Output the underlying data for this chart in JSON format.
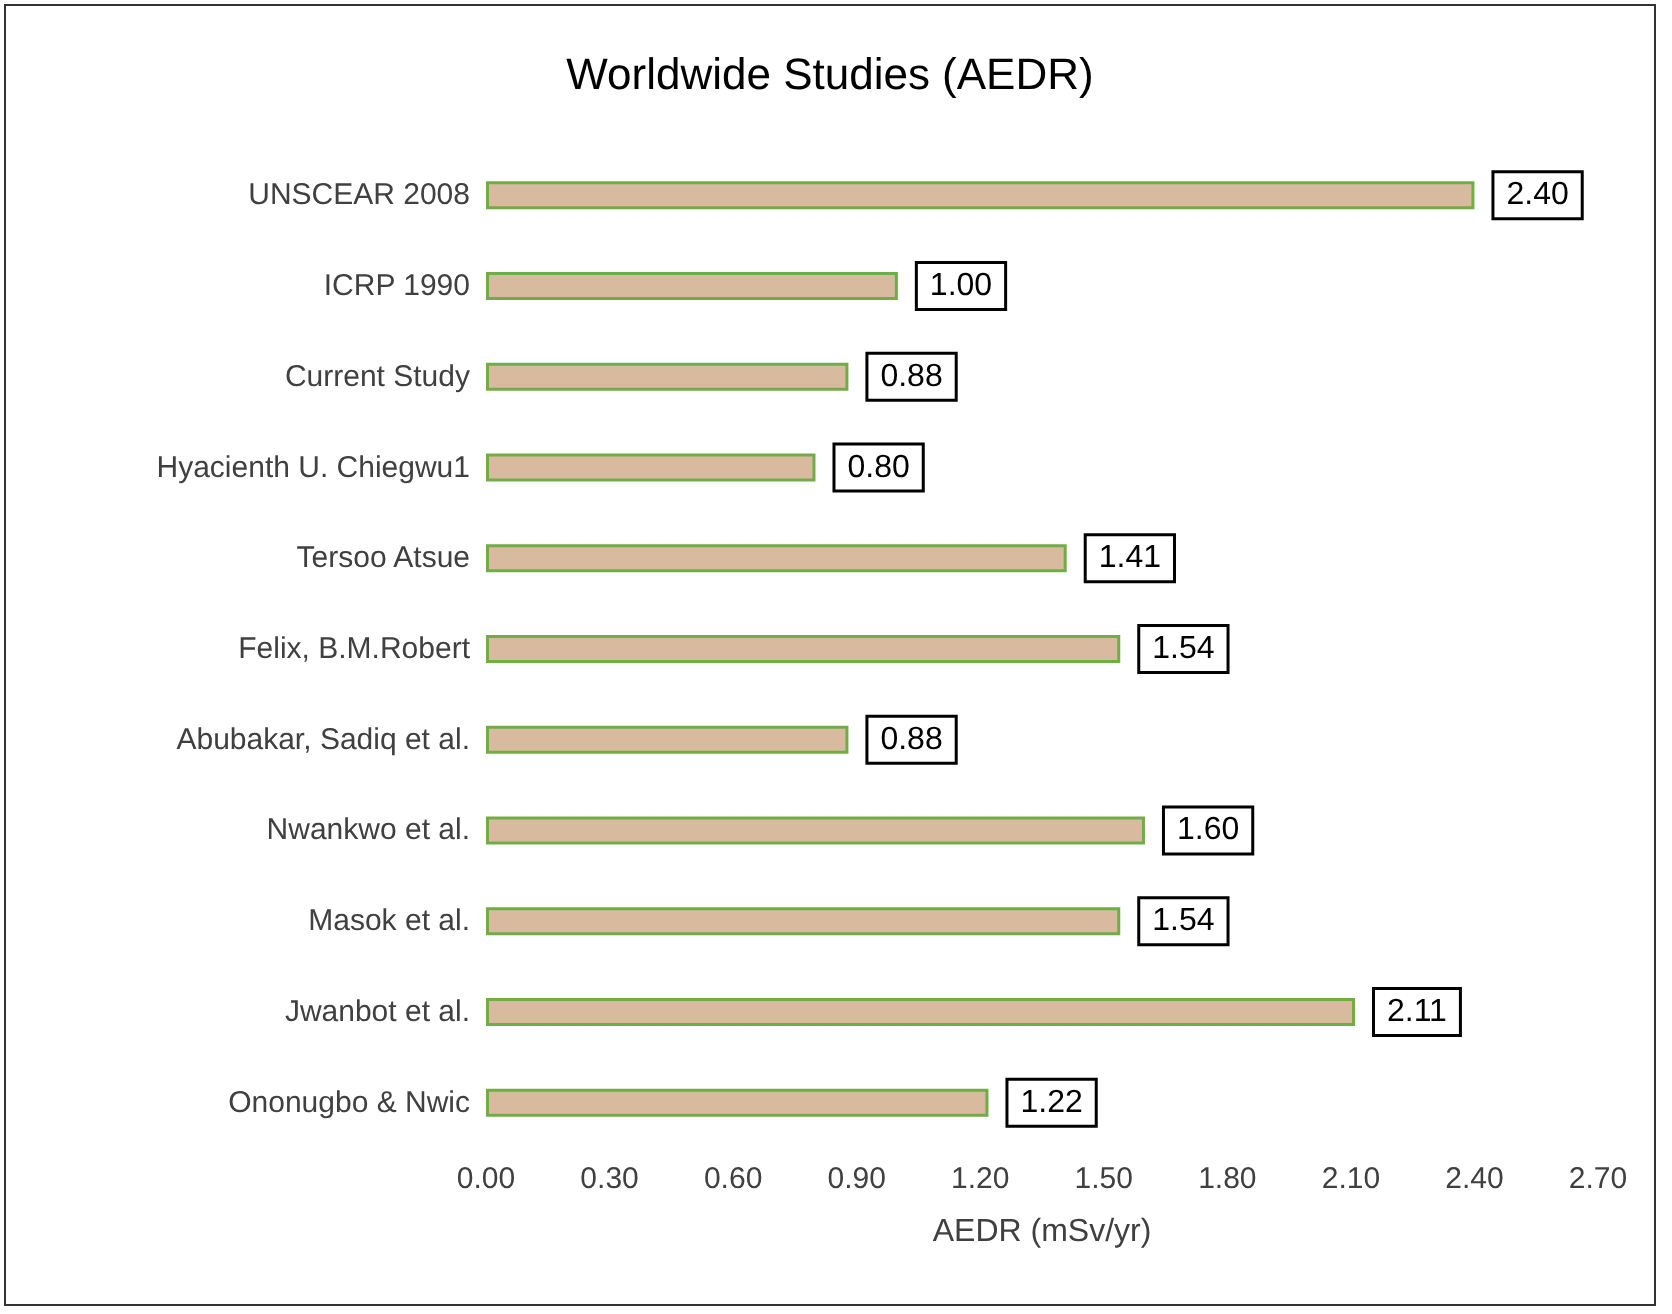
{
  "chart_data": {
    "type": "bar",
    "orientation": "horizontal",
    "title": "Worldwide Studies (AEDR)",
    "xlabel": "AEDR (mSv/yr)",
    "categories": [
      "UNSCEAR 2008",
      "ICRP 1990",
      "Current Study",
      "Hyacienth U. Chiegwu1",
      "Tersoo Atsue",
      "Felix, B.M.Robert",
      "Abubakar, Sadiq et al.",
      "Nwankwo et al.",
      "Masok et al.",
      "Jwanbot et al.",
      "Ononugbo & Nwic"
    ],
    "values": [
      2.4,
      1.0,
      0.88,
      0.8,
      1.41,
      1.54,
      0.88,
      1.6,
      1.54,
      2.11,
      1.22
    ],
    "value_labels": [
      "2.40",
      "1.00",
      "0.88",
      "0.80",
      "1.41",
      "1.54",
      "0.88",
      "1.60",
      "1.54",
      "2.11",
      "1.22"
    ],
    "color": "#d8bb9f",
    "xlim": [
      0,
      2.7
    ],
    "xticks": [
      {
        "value": 0,
        "label": "0.00"
      },
      {
        "value": 0.3,
        "label": "0.30"
      },
      {
        "value": 0.6,
        "label": "0.60"
      },
      {
        "value": 0.9,
        "label": "0.90"
      },
      {
        "value": 1.2,
        "label": "1.20"
      },
      {
        "value": 1.5,
        "label": "1.50"
      },
      {
        "value": 1.8,
        "label": "1.80"
      },
      {
        "value": 2.1,
        "label": "2.10"
      },
      {
        "value": 2.4,
        "label": "2.40"
      },
      {
        "value": 2.7,
        "label": "2.70"
      }
    ],
    "grid": false
  }
}
